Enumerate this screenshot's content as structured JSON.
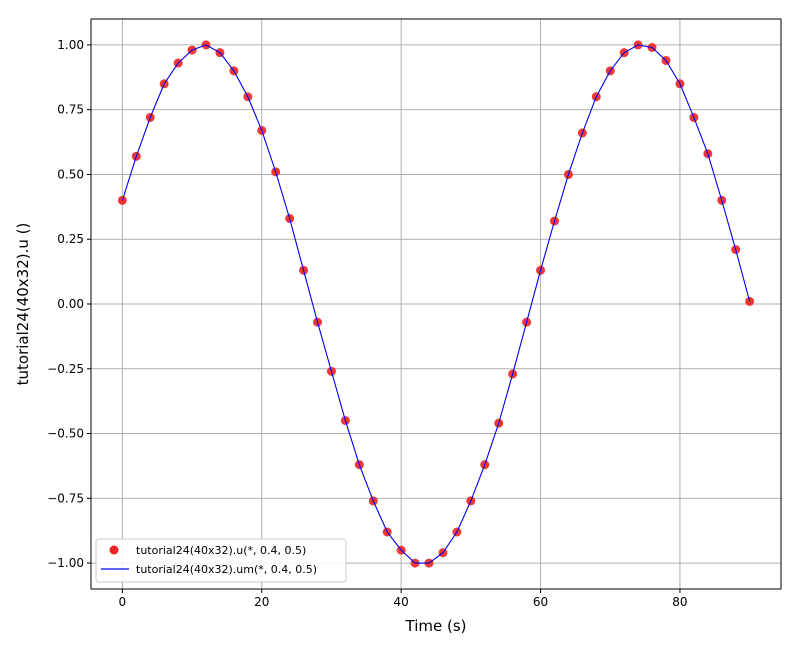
{
  "chart_data": {
    "type": "scatter",
    "xlabel": "Time (s)",
    "ylabel": "tutorial24(40x32).u ()",
    "xlim": [
      -4.5,
      94.5
    ],
    "ylim": [
      -1.1,
      1.1
    ],
    "xticks": [
      0,
      20,
      40,
      60,
      80
    ],
    "yticks": [
      -1.0,
      -0.75,
      -0.5,
      -0.25,
      0.0,
      0.25,
      0.5,
      0.75,
      1.0
    ],
    "xtick_labels": [
      "0",
      "20",
      "40",
      "60",
      "80"
    ],
    "ytick_labels": [
      "−1.00",
      "−0.75",
      "−0.50",
      "−0.25",
      "0.00",
      "0.25",
      "0.50",
      "0.75",
      "1.00"
    ],
    "grid": true,
    "legend_position": "lower-left",
    "x": [
      0,
      2,
      4,
      6,
      8,
      10,
      12,
      14,
      16,
      18,
      20,
      22,
      24,
      26,
      28,
      30,
      32,
      34,
      36,
      38,
      40,
      42,
      44,
      46,
      48,
      50,
      52,
      54,
      56,
      58,
      60,
      62,
      64,
      66,
      68,
      70,
      72,
      74,
      76,
      78,
      80,
      82,
      84,
      86,
      88,
      90
    ],
    "series": [
      {
        "name": "tutorial24(40x32).u(*, 0.4, 0.5)",
        "kind": "scatter",
        "color": "#ee2222",
        "values": [
          0.4,
          0.57,
          0.72,
          0.85,
          0.93,
          0.98,
          1.0,
          0.97,
          0.9,
          0.8,
          0.67,
          0.51,
          0.33,
          0.13,
          -0.07,
          -0.26,
          -0.45,
          -0.62,
          -0.76,
          -0.88,
          -0.95,
          -1.0,
          -1.0,
          -0.96,
          -0.88,
          -0.76,
          -0.62,
          -0.46,
          -0.27,
          -0.07,
          0.13,
          0.32,
          0.5,
          0.66,
          0.8,
          0.9,
          0.97,
          1.0,
          0.99,
          0.94,
          0.85,
          0.72,
          0.58,
          0.4,
          0.21,
          0.01
        ]
      },
      {
        "name": "tutorial24(40x32).um(*, 0.4, 0.5)",
        "kind": "line",
        "color": "#0000ee",
        "values": [
          0.4,
          0.57,
          0.72,
          0.85,
          0.93,
          0.98,
          1.0,
          0.97,
          0.9,
          0.8,
          0.67,
          0.51,
          0.33,
          0.13,
          -0.07,
          -0.26,
          -0.45,
          -0.62,
          -0.76,
          -0.88,
          -0.95,
          -1.0,
          -1.0,
          -0.96,
          -0.88,
          -0.76,
          -0.62,
          -0.46,
          -0.27,
          -0.07,
          0.13,
          0.32,
          0.5,
          0.66,
          0.8,
          0.9,
          0.97,
          1.0,
          0.99,
          0.94,
          0.85,
          0.72,
          0.58,
          0.4,
          0.21,
          0.01
        ]
      }
    ]
  }
}
